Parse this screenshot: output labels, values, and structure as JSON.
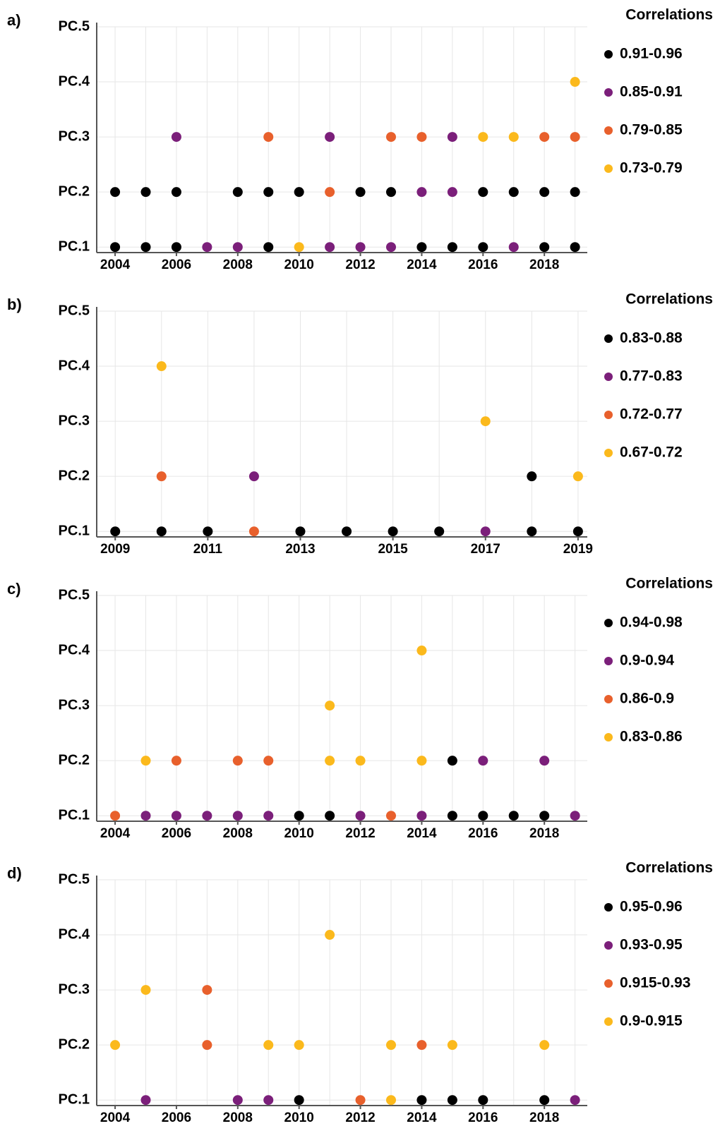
{
  "chart_data": [
    {
      "type": "scatter",
      "label": "a)",
      "legend_title": "Correlations",
      "legend": "right",
      "grid": true,
      "xlim": [
        2003.4,
        2019.4
      ],
      "xticks": [
        2004,
        2006,
        2008,
        2010,
        2012,
        2014,
        2016,
        2018
      ],
      "xminorticks": [
        2004,
        2005,
        2006,
        2007,
        2008,
        2009,
        2010,
        2011,
        2012,
        2013,
        2014,
        2015,
        2016,
        2017,
        2018,
        2019
      ],
      "ylim": [
        0.9,
        5
      ],
      "yticks": [
        {
          "value": 1,
          "label": "PC.1"
        },
        {
          "value": 2,
          "label": "PC.2"
        },
        {
          "value": 3,
          "label": "PC.3"
        },
        {
          "value": 4,
          "label": "PC.4"
        },
        {
          "value": 5,
          "label": "PC.5"
        }
      ],
      "series": [
        {
          "name": "0.91-0.96",
          "color": "#000000",
          "x": [
            2004,
            2004,
            2005,
            2005,
            2006,
            2006,
            2008,
            2009,
            2009,
            2010,
            2012,
            2013,
            2014,
            2015,
            2016,
            2016,
            2017,
            2018,
            2018,
            2019,
            2019
          ],
          "y": [
            2,
            1,
            2,
            1,
            2,
            1,
            2,
            2,
            1,
            2,
            2,
            2,
            1,
            1,
            2,
            1,
            2,
            2,
            1,
            2,
            1
          ]
        },
        {
          "name": "0.85-0.91",
          "color": "#7b1f7a",
          "x": [
            2006,
            2007,
            2008,
            2011,
            2011,
            2012,
            2013,
            2014,
            2015,
            2015,
            2017
          ],
          "y": [
            3,
            1,
            1,
            3,
            1,
            1,
            1,
            2,
            3,
            2,
            1
          ]
        },
        {
          "name": "0.79-0.85",
          "color": "#e8602c",
          "x": [
            2009,
            2011,
            2013,
            2014,
            2018,
            2019
          ],
          "y": [
            3,
            2,
            3,
            3,
            3,
            3
          ]
        },
        {
          "name": "0.73-0.79",
          "color": "#fbb91c",
          "x": [
            2010,
            2016,
            2017,
            2019
          ],
          "y": [
            1,
            3,
            3,
            4
          ]
        }
      ]
    },
    {
      "type": "scatter",
      "label": "b)",
      "legend_title": "Correlations",
      "legend": "right",
      "grid": true,
      "xlim": [
        2008.6,
        2019.2
      ],
      "xticks": [
        2009,
        2011,
        2013,
        2015,
        2017,
        2019
      ],
      "xminorticks": [
        2009,
        2010,
        2011,
        2012,
        2013,
        2014,
        2015,
        2016,
        2017,
        2018,
        2019
      ],
      "ylim": [
        0.9,
        5
      ],
      "yticks": [
        {
          "value": 1,
          "label": "PC.1"
        },
        {
          "value": 2,
          "label": "PC.2"
        },
        {
          "value": 3,
          "label": "PC.3"
        },
        {
          "value": 4,
          "label": "PC.4"
        },
        {
          "value": 5,
          "label": "PC.5"
        }
      ],
      "series": [
        {
          "name": "0.83-0.88",
          "color": "#000000",
          "x": [
            2009,
            2010,
            2011,
            2013,
            2014,
            2015,
            2016,
            2018,
            2018,
            2019
          ],
          "y": [
            1,
            1,
            1,
            1,
            1,
            1,
            1,
            2,
            1,
            1
          ]
        },
        {
          "name": "0.77-0.83",
          "color": "#7b1f7a",
          "x": [
            2012,
            2017
          ],
          "y": [
            2,
            1
          ]
        },
        {
          "name": "0.72-0.77",
          "color": "#e8602c",
          "x": [
            2010,
            2012
          ],
          "y": [
            2,
            1
          ]
        },
        {
          "name": "0.67-0.72",
          "color": "#fbb91c",
          "x": [
            2010,
            2017,
            2019
          ],
          "y": [
            4,
            3,
            2
          ]
        }
      ]
    },
    {
      "type": "scatter",
      "label": "c)",
      "legend_title": "Correlations",
      "legend": "right",
      "grid": true,
      "xlim": [
        2003.4,
        2019.4
      ],
      "xticks": [
        2004,
        2006,
        2008,
        2010,
        2012,
        2014,
        2016,
        2018
      ],
      "xminorticks": [
        2004,
        2005,
        2006,
        2007,
        2008,
        2009,
        2010,
        2011,
        2012,
        2013,
        2014,
        2015,
        2016,
        2017,
        2018,
        2019
      ],
      "ylim": [
        0.9,
        5
      ],
      "yticks": [
        {
          "value": 1,
          "label": "PC.1"
        },
        {
          "value": 2,
          "label": "PC.2"
        },
        {
          "value": 3,
          "label": "PC.3"
        },
        {
          "value": 4,
          "label": "PC.4"
        },
        {
          "value": 5,
          "label": "PC.5"
        }
      ],
      "series": [
        {
          "name": "0.94-0.98",
          "color": "#000000",
          "x": [
            2010,
            2011,
            2015,
            2015,
            2016,
            2017,
            2018
          ],
          "y": [
            1,
            1,
            2,
            1,
            1,
            1,
            1
          ]
        },
        {
          "name": "0.9-0.94",
          "color": "#7b1f7a",
          "x": [
            2005,
            2006,
            2007,
            2008,
            2009,
            2012,
            2014,
            2016,
            2018,
            2019
          ],
          "y": [
            1,
            1,
            1,
            1,
            1,
            1,
            1,
            2,
            2,
            1
          ]
        },
        {
          "name": "0.86-0.9",
          "color": "#e8602c",
          "x": [
            2004,
            2006,
            2008,
            2009,
            2013
          ],
          "y": [
            1,
            2,
            2,
            2,
            1
          ]
        },
        {
          "name": "0.83-0.86",
          "color": "#fbb91c",
          "x": [
            2005,
            2011,
            2011,
            2012,
            2014,
            2014
          ],
          "y": [
            2,
            3,
            2,
            2,
            4,
            2
          ]
        }
      ]
    },
    {
      "type": "scatter",
      "label": "d)",
      "legend_title": "Correlations",
      "legend": "right",
      "grid": true,
      "xlim": [
        2003.4,
        2019.4
      ],
      "xticks": [
        2004,
        2006,
        2008,
        2010,
        2012,
        2014,
        2016,
        2018
      ],
      "xminorticks": [
        2004,
        2005,
        2006,
        2007,
        2008,
        2009,
        2010,
        2011,
        2012,
        2013,
        2014,
        2015,
        2016,
        2017,
        2018,
        2019
      ],
      "ylim": [
        0.9,
        5
      ],
      "yticks": [
        {
          "value": 1,
          "label": "PC.1"
        },
        {
          "value": 2,
          "label": "PC.2"
        },
        {
          "value": 3,
          "label": "PC.3"
        },
        {
          "value": 4,
          "label": "PC.4"
        },
        {
          "value": 5,
          "label": "PC.5"
        }
      ],
      "series": [
        {
          "name": "0.95-0.96",
          "color": "#000000",
          "x": [
            2010,
            2014,
            2015,
            2016,
            2018
          ],
          "y": [
            1,
            1,
            1,
            1,
            1
          ]
        },
        {
          "name": "0.93-0.95",
          "color": "#7b1f7a",
          "x": [
            2005,
            2008,
            2009,
            2019
          ],
          "y": [
            1,
            1,
            1,
            1
          ]
        },
        {
          "name": "0.915-0.93",
          "color": "#e8602c",
          "x": [
            2007,
            2007,
            2012,
            2014
          ],
          "y": [
            3,
            2,
            1,
            2
          ]
        },
        {
          "name": "0.9-0.915",
          "color": "#fbb91c",
          "x": [
            2004,
            2005,
            2009,
            2010,
            2011,
            2013,
            2013,
            2015,
            2018
          ],
          "y": [
            2,
            3,
            2,
            2,
            4,
            2,
            1,
            2,
            2
          ]
        }
      ]
    }
  ]
}
